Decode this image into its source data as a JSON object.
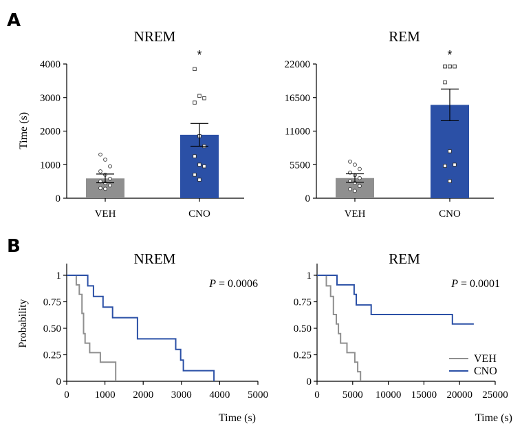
{
  "panels": {
    "a_letter": "A",
    "b_letter": "B"
  },
  "colors": {
    "veh": "#8f8f8f",
    "cno": "#2b50a6",
    "axis": "#000000"
  },
  "chart_data": [
    {
      "type": "bar",
      "title": "NREM",
      "ylabel": "Time (s)",
      "categories": [
        "VEH",
        "CNO"
      ],
      "values": [
        590,
        1890
      ],
      "errors": [
        130,
        340
      ],
      "yticks": [
        "0",
        "1000",
        "2000",
        "3000",
        "4000"
      ],
      "ylim": [
        0,
        4000
      ],
      "significance": [
        "",
        "*"
      ],
      "points": [
        [
          1300,
          1150,
          950,
          800,
          700,
          580,
          500,
          450,
          380,
          300,
          280
        ],
        [
          3850,
          3050,
          2980,
          2850,
          1850,
          1550,
          1250,
          1000,
          950,
          700,
          550
        ]
      ]
    },
    {
      "type": "bar",
      "title": "REM",
      "ylabel": "",
      "categories": [
        "VEH",
        "CNO"
      ],
      "values": [
        3300,
        15300
      ],
      "errors": [
        700,
        2600
      ],
      "yticks": [
        "0",
        "5500",
        "11000",
        "16500",
        "22000"
      ],
      "ylim": [
        0,
        22000
      ],
      "significance": [
        "",
        "*"
      ],
      "points": [
        [
          6000,
          5500,
          4800,
          4200,
          3800,
          3300,
          2800,
          2500,
          2000,
          1500,
          1200
        ],
        [
          21600,
          21600,
          21600,
          21600,
          21600,
          21600,
          19000,
          7700,
          5500,
          5300,
          2800
        ]
      ]
    },
    {
      "type": "line",
      "title": "NREM",
      "xlabel": "Time (s)",
      "ylabel": "Probability",
      "annotation": {
        "p_label": "P",
        "p_value": " = 0.0006"
      },
      "xticks": [
        "0",
        "1000",
        "2000",
        "3000",
        "4000",
        "5000"
      ],
      "yticks": [
        "0",
        "0.25",
        "0.50",
        "0.75",
        "1"
      ],
      "xlim": [
        0,
        5000
      ],
      "ylim": [
        0,
        1
      ],
      "series": [
        {
          "name": "VEH",
          "x": [
            0,
            250,
            250,
            330,
            330,
            400,
            400,
            440,
            440,
            480,
            480,
            600,
            600,
            880,
            880,
            1280,
            1280
          ],
          "y": [
            1,
            1,
            0.91,
            0.91,
            0.82,
            0.82,
            0.64,
            0.64,
            0.45,
            0.45,
            0.36,
            0.36,
            0.27,
            0.27,
            0.18,
            0.18,
            0
          ]
        },
        {
          "name": "CNO",
          "x": [
            0,
            550,
            550,
            700,
            700,
            950,
            950,
            1200,
            1200,
            1850,
            1850,
            2850,
            2850,
            2980,
            2980,
            3050,
            3050,
            3850,
            3850
          ],
          "y": [
            1,
            1,
            0.9,
            0.9,
            0.8,
            0.8,
            0.7,
            0.7,
            0.6,
            0.6,
            0.4,
            0.4,
            0.3,
            0.3,
            0.2,
            0.2,
            0.1,
            0.1,
            0
          ]
        }
      ]
    },
    {
      "type": "line",
      "title": "REM",
      "xlabel": "Time (s)",
      "ylabel": "",
      "annotation": {
        "p_label": "P",
        "p_value": " = 0.0001"
      },
      "xticks": [
        "0",
        "5000",
        "10000",
        "15000",
        "20000",
        "25000"
      ],
      "yticks": [
        "0",
        "0.25",
        "0.50",
        "0.75",
        "1"
      ],
      "xlim": [
        0,
        25000
      ],
      "ylim": [
        0,
        1
      ],
      "legend": [
        "VEH",
        "CNO"
      ],
      "series": [
        {
          "name": "VEH",
          "x": [
            0,
            1300,
            1300,
            1900,
            1900,
            2300,
            2300,
            2700,
            2700,
            3000,
            3000,
            3300,
            3300,
            4200,
            4200,
            5300,
            5300,
            5700,
            5700,
            6100,
            6100
          ],
          "y": [
            1,
            1,
            0.9,
            0.9,
            0.8,
            0.8,
            0.63,
            0.63,
            0.54,
            0.54,
            0.45,
            0.45,
            0.36,
            0.36,
            0.27,
            0.27,
            0.18,
            0.18,
            0.09,
            0.09,
            0
          ]
        },
        {
          "name": "CNO",
          "x": [
            0,
            2800,
            2800,
            5200,
            5200,
            5500,
            5500,
            7600,
            7600,
            19000,
            19000,
            22000
          ],
          "y": [
            1,
            1,
            0.91,
            0.91,
            0.82,
            0.82,
            0.72,
            0.72,
            0.63,
            0.63,
            0.54,
            0.54
          ]
        }
      ]
    }
  ]
}
